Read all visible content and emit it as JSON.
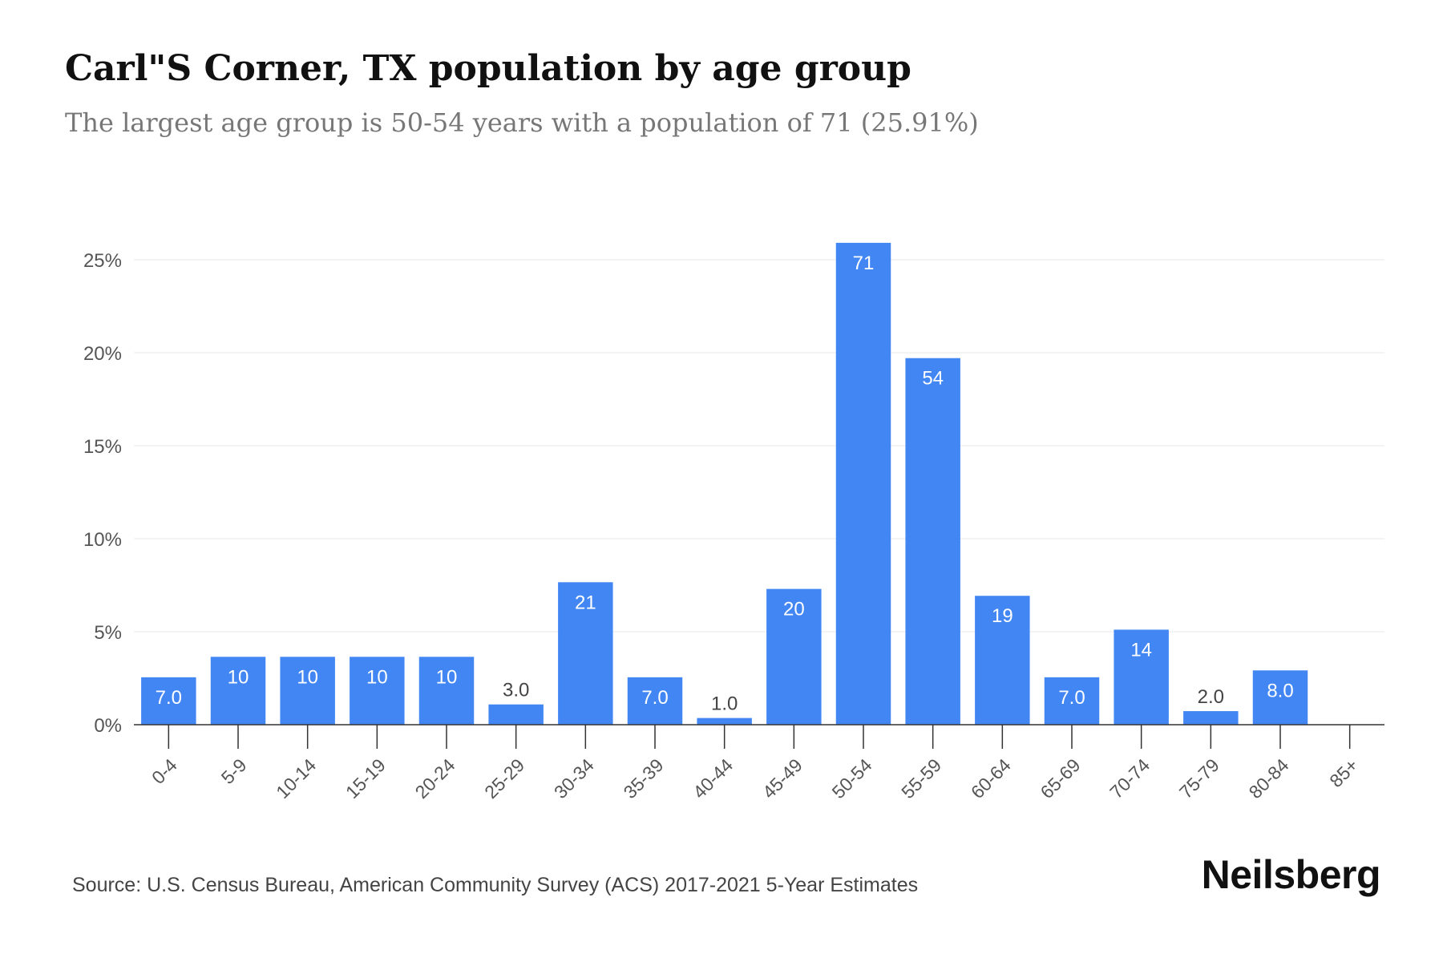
{
  "title": "Carl\"S Corner, TX population by age group",
  "subtitle": "The largest age group is 50-54 years with a population of 71 (25.91%)",
  "source": "Source: U.S. Census Bureau, American Community Survey (ACS) 2017-2021 5-Year Estimates",
  "brand": "Neilsberg",
  "colors": {
    "bar": "#4286f4",
    "grid": "#e9e9e9",
    "axis": "#333333",
    "tick_label": "#555555"
  },
  "chart_data": {
    "type": "bar",
    "categories": [
      "0-4",
      "5-9",
      "10-14",
      "15-19",
      "20-24",
      "25-29",
      "30-34",
      "35-39",
      "40-44",
      "45-49",
      "50-54",
      "55-59",
      "60-64",
      "65-69",
      "70-74",
      "75-79",
      "80-84",
      "85+"
    ],
    "values": [
      2.55,
      3.65,
      3.65,
      3.65,
      3.65,
      1.09,
      7.66,
      2.55,
      0.36,
      7.3,
      25.91,
      19.71,
      6.93,
      2.55,
      5.11,
      0.73,
      2.92,
      0
    ],
    "data_labels": [
      "7.0",
      "10",
      "10",
      "10",
      "10",
      "3.0",
      "21",
      "7.0",
      "1.0",
      "20",
      "71",
      "54",
      "19",
      "7.0",
      "14",
      "2.0",
      "8.0",
      ""
    ],
    "y_ticks": [
      0,
      5,
      10,
      15,
      20,
      25
    ],
    "y_tick_labels": [
      "0%",
      "5%",
      "10%",
      "15%",
      "20%",
      "25%"
    ],
    "ylim": [
      0,
      25.91
    ],
    "xlabel": "",
    "ylabel": "",
    "grid": true
  }
}
